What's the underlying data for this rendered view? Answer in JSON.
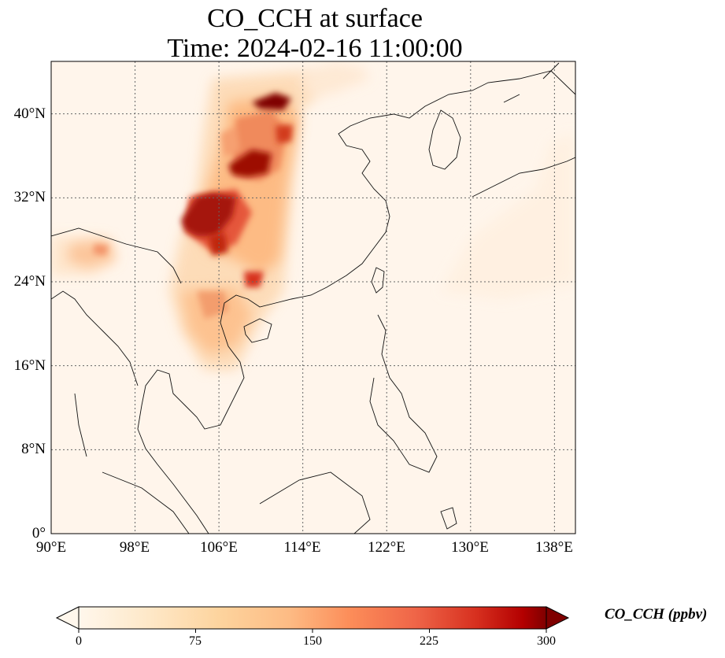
{
  "title": {
    "line1": "CO_CCH at surface",
    "line2": "Time: 2024-02-16 11:00:00"
  },
  "map": {
    "extent": {
      "lon": [
        90,
        140
      ],
      "lat": [
        0,
        45
      ]
    },
    "lat_ticks": [
      "0°",
      "8°N",
      "16°N",
      "24°N",
      "32°N",
      "40°N"
    ],
    "lon_ticks": [
      "90°E",
      "98°E",
      "106°E",
      "114°E",
      "122°E",
      "130°E",
      "138°E"
    ],
    "gridlines": true,
    "colormap": "OrRd",
    "plume_colors": [
      "#fff5eb",
      "#fdd49e",
      "#fc8d59",
      "#d7301f",
      "#7f0000"
    ]
  },
  "colorbar": {
    "ticks": [
      "0",
      "75",
      "150",
      "225",
      "300"
    ],
    "min": 0,
    "max": 300,
    "extend": "both",
    "label": "CO_CCH (ppbv)"
  }
}
